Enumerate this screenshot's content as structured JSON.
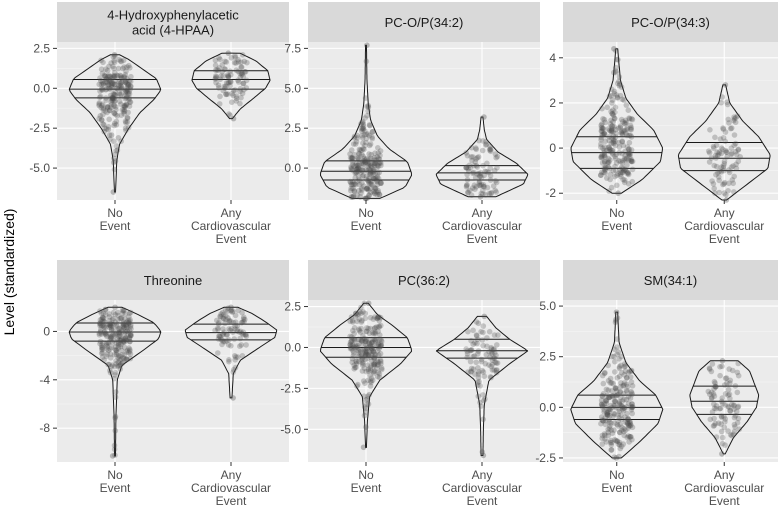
{
  "ylabel": "Level (standardized)",
  "colors": {
    "panel_background": "#EBEBEB",
    "strip_background": "#D9D9D9",
    "grid_major": "#FFFFFF",
    "violin_outline": "#1A1A1A",
    "points": "#4D4D4D"
  },
  "chart_data": [
    {
      "type": "violin",
      "title_lines": [
        "4-Hydroxyphenylacetic",
        "acid (4-HPAA)"
      ],
      "categories": [
        [
          "No",
          "Event"
        ],
        [
          "Any",
          "Cardiovascular",
          "Event"
        ]
      ],
      "ylim": [
        -7.0,
        2.9
      ],
      "yticks": [
        2.5,
        0.0,
        -2.5,
        -5.0
      ],
      "ytick_labels": [
        "2.5",
        "0.0",
        "-2.5",
        "-5.0"
      ],
      "groups": [
        {
          "name": "No Event",
          "min": -6.5,
          "max": 2.1,
          "quantiles": [
            -0.6,
            -0.05,
            0.55
          ],
          "n_points": 230,
          "profile": [
            [
              -6.5,
              0.01
            ],
            [
              -4.5,
              0.04
            ],
            [
              -3.5,
              0.1
            ],
            [
              -2.5,
              0.3
            ],
            [
              -1.5,
              0.55
            ],
            [
              -0.7,
              0.85
            ],
            [
              -0.1,
              1.0
            ],
            [
              0.6,
              0.9
            ],
            [
              1.3,
              0.55
            ],
            [
              1.8,
              0.3
            ],
            [
              2.1,
              0.1
            ]
          ]
        },
        {
          "name": "Any Cardiovascular Event",
          "min": -1.9,
          "max": 2.2,
          "quantiles": [
            -0.05,
            0.55,
            1.1
          ],
          "n_points": 90,
          "profile": [
            [
              -1.9,
              0.03
            ],
            [
              -1.3,
              0.2
            ],
            [
              -0.6,
              0.5
            ],
            [
              0.0,
              0.75
            ],
            [
              0.5,
              0.85
            ],
            [
              1.1,
              0.8
            ],
            [
              1.7,
              0.55
            ],
            [
              2.2,
              0.2
            ]
          ]
        }
      ]
    },
    {
      "type": "violin",
      "title_lines": [
        "PC-O/P(34:2)"
      ],
      "categories": [
        [
          "No",
          "Event"
        ],
        [
          "Any",
          "Cardiovascular",
          "Event"
        ]
      ],
      "ylim": [
        -2.0,
        7.9
      ],
      "yticks": [
        7.5,
        5.0,
        2.5,
        0.0
      ],
      "ytick_labels": [
        "7.5",
        "5.0",
        "2.5",
        "0.0"
      ],
      "groups": [
        {
          "name": "No Event",
          "min": -1.9,
          "max": 7.7,
          "quantiles": [
            -0.75,
            -0.2,
            0.45
          ],
          "n_points": 230,
          "profile": [
            [
              -1.9,
              0.3
            ],
            [
              -1.2,
              0.85
            ],
            [
              -0.4,
              1.0
            ],
            [
              0.4,
              0.9
            ],
            [
              1.2,
              0.5
            ],
            [
              2.0,
              0.25
            ],
            [
              3.0,
              0.1
            ],
            [
              4.0,
              0.05
            ],
            [
              5.5,
              0.02
            ],
            [
              7.7,
              0.01
            ]
          ]
        },
        {
          "name": "Any Cardiovascular Event",
          "min": -1.8,
          "max": 3.2,
          "quantiles": [
            -0.75,
            -0.3,
            0.15
          ],
          "n_points": 90,
          "profile": [
            [
              -1.8,
              0.3
            ],
            [
              -1.0,
              0.9
            ],
            [
              -0.4,
              1.0
            ],
            [
              0.3,
              0.75
            ],
            [
              1.0,
              0.35
            ],
            [
              1.8,
              0.1
            ],
            [
              2.4,
              0.05
            ],
            [
              3.2,
              0.02
            ]
          ]
        }
      ]
    },
    {
      "type": "violin",
      "title_lines": [
        "PC-O/P(34:3)"
      ],
      "categories": [
        [
          "No",
          "Event"
        ],
        [
          "Any",
          "Cardiovascular",
          "Event"
        ]
      ],
      "ylim": [
        -2.3,
        4.7
      ],
      "yticks": [
        4,
        2,
        0,
        -2
      ],
      "ytick_labels": [
        "4",
        "2",
        "0",
        "-2"
      ],
      "groups": [
        {
          "name": "No Event",
          "min": -2.0,
          "max": 4.4,
          "quantiles": [
            -0.9,
            -0.2,
            0.5
          ],
          "n_points": 230,
          "profile": [
            [
              -2.0,
              0.1
            ],
            [
              -1.4,
              0.55
            ],
            [
              -0.6,
              0.95
            ],
            [
              0.0,
              1.0
            ],
            [
              0.8,
              0.8
            ],
            [
              1.5,
              0.45
            ],
            [
              2.2,
              0.2
            ],
            [
              3.0,
              0.08
            ],
            [
              4.4,
              0.02
            ]
          ]
        },
        {
          "name": "Any Cardiovascular Event",
          "min": -2.3,
          "max": 2.8,
          "quantiles": [
            -1.0,
            -0.45,
            0.25
          ],
          "n_points": 90,
          "profile": [
            [
              -2.3,
              0.05
            ],
            [
              -1.6,
              0.5
            ],
            [
              -0.9,
              0.95
            ],
            [
              -0.3,
              1.0
            ],
            [
              0.5,
              0.75
            ],
            [
              1.2,
              0.4
            ],
            [
              2.0,
              0.12
            ],
            [
              2.8,
              0.03
            ]
          ]
        }
      ]
    },
    {
      "type": "violin",
      "title_lines": [
        "Threonine"
      ],
      "categories": [
        [
          "No",
          "Event"
        ],
        [
          "Any",
          "Cardiovascular",
          "Event"
        ]
      ],
      "ylim": [
        -10.8,
        2.6
      ],
      "yticks": [
        0,
        -4,
        -8
      ],
      "ytick_labels": [
        "0",
        "-4",
        "-8"
      ],
      "groups": [
        {
          "name": "No Event",
          "min": -10.3,
          "max": 2.0,
          "quantiles": [
            -0.8,
            -0.05,
            0.7
          ],
          "n_points": 230,
          "profile": [
            [
              -10.3,
              0.01
            ],
            [
              -7.0,
              0.02
            ],
            [
              -4.0,
              0.05
            ],
            [
              -2.8,
              0.15
            ],
            [
              -1.6,
              0.6
            ],
            [
              -0.6,
              0.95
            ],
            [
              0.0,
              1.0
            ],
            [
              0.7,
              0.85
            ],
            [
              1.4,
              0.5
            ],
            [
              2.0,
              0.15
            ]
          ]
        },
        {
          "name": "Any Cardiovascular Event",
          "min": -5.5,
          "max": 2.0,
          "quantiles": [
            -0.7,
            -0.1,
            0.6
          ],
          "n_points": 90,
          "profile": [
            [
              -5.5,
              0.02
            ],
            [
              -3.5,
              0.05
            ],
            [
              -2.4,
              0.2
            ],
            [
              -1.5,
              0.55
            ],
            [
              -0.5,
              0.95
            ],
            [
              0.1,
              1.0
            ],
            [
              0.8,
              0.75
            ],
            [
              1.5,
              0.45
            ],
            [
              2.0,
              0.15
            ]
          ]
        }
      ]
    },
    {
      "type": "violin",
      "title_lines": [
        "PC(36:2)"
      ],
      "categories": [
        [
          "No",
          "Event"
        ],
        [
          "Any",
          "Cardiovascular",
          "Event"
        ]
      ],
      "ylim": [
        -7.0,
        2.9
      ],
      "yticks": [
        2.5,
        0.0,
        -2.5,
        -5.0
      ],
      "ytick_labels": [
        "2.5",
        "0.0",
        "-2.5",
        "-5.0"
      ],
      "groups": [
        {
          "name": "No Event",
          "min": -6.1,
          "max": 2.7,
          "quantiles": [
            -0.6,
            0.0,
            0.6
          ],
          "n_points": 230,
          "profile": [
            [
              -6.1,
              0.01
            ],
            [
              -4.5,
              0.03
            ],
            [
              -3.0,
              0.08
            ],
            [
              -2.0,
              0.3
            ],
            [
              -1.0,
              0.75
            ],
            [
              -0.2,
              1.0
            ],
            [
              0.6,
              0.9
            ],
            [
              1.4,
              0.55
            ],
            [
              2.0,
              0.25
            ],
            [
              2.7,
              0.05
            ]
          ]
        },
        {
          "name": "Any Cardiovascular Event",
          "min": -6.6,
          "max": 1.9,
          "quantiles": [
            -0.65,
            -0.2,
            0.5
          ],
          "n_points": 90,
          "profile": [
            [
              -6.6,
              0.02
            ],
            [
              -5.0,
              0.03
            ],
            [
              -3.5,
              0.05
            ],
            [
              -2.0,
              0.15
            ],
            [
              -1.0,
              0.6
            ],
            [
              -0.2,
              1.0
            ],
            [
              0.5,
              0.6
            ],
            [
              1.2,
              0.3
            ],
            [
              1.9,
              0.1
            ]
          ]
        }
      ]
    },
    {
      "type": "violin",
      "title_lines": [
        "SM(34:1)"
      ],
      "categories": [
        [
          "No",
          "Event"
        ],
        [
          "Any",
          "Cardiovascular",
          "Event"
        ]
      ],
      "ylim": [
        -2.7,
        5.3
      ],
      "yticks": [
        5.0,
        2.5,
        0.0,
        -2.5
      ],
      "ytick_labels": [
        "5.0",
        "2.5",
        "0.0",
        "-2.5"
      ],
      "groups": [
        {
          "name": "No Event",
          "min": -2.5,
          "max": 4.7,
          "quantiles": [
            -0.6,
            0.0,
            0.6
          ],
          "n_points": 230,
          "profile": [
            [
              -2.5,
              0.1
            ],
            [
              -1.7,
              0.5
            ],
            [
              -0.8,
              0.9
            ],
            [
              -0.1,
              1.0
            ],
            [
              0.6,
              0.85
            ],
            [
              1.3,
              0.5
            ],
            [
              2.2,
              0.2
            ],
            [
              3.2,
              0.05
            ],
            [
              4.7,
              0.02
            ]
          ]
        },
        {
          "name": "Any Cardiovascular Event",
          "min": -2.3,
          "max": 2.3,
          "quantiles": [
            -0.35,
            0.3,
            1.05
          ],
          "n_points": 90,
          "profile": [
            [
              -2.3,
              0.02
            ],
            [
              -1.5,
              0.2
            ],
            [
              -0.7,
              0.5
            ],
            [
              0.0,
              0.7
            ],
            [
              0.6,
              0.75
            ],
            [
              1.2,
              0.65
            ],
            [
              1.8,
              0.55
            ],
            [
              2.3,
              0.3
            ]
          ]
        }
      ]
    }
  ]
}
